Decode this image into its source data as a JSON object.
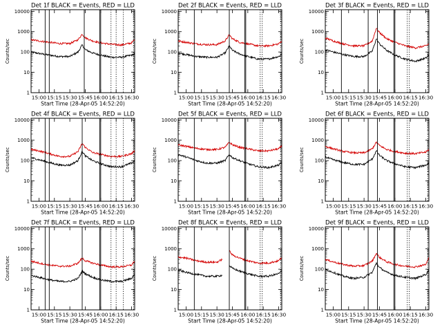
{
  "figure": {
    "background": "#ffffff"
  },
  "colors": {
    "events": "#000000",
    "lld": "#d40000"
  },
  "x_ticks": [
    "15:00",
    "15:15",
    "15:30",
    "15:45",
    "16:00",
    "16:15",
    "16:30"
  ],
  "y_ticks": [
    "1",
    "10",
    "100",
    "1000",
    "10000"
  ],
  "chart_data": [
    {
      "type": "line",
      "title": "Det 1f BLACK = Events, RED = LLD",
      "xlabel": "Start Time (28-Apr-05 14:52:20)",
      "ylabel": "Counts/sec",
      "yscale": "log",
      "ylim": [
        1,
        12000
      ],
      "xlim": [
        "14:52:20",
        "16:33:00"
      ],
      "series": [
        {
          "name": "Events",
          "color": "black",
          "x": [
            "14:52",
            "15:00",
            "15:10",
            "15:20",
            "15:30",
            "15:38",
            "15:42",
            "15:45",
            "15:52",
            "16:00",
            "16:10",
            "16:20",
            "16:30",
            "16:33"
          ],
          "values": [
            100,
            85,
            70,
            60,
            60,
            100,
            220,
            130,
            90,
            70,
            55,
            55,
            70,
            80
          ]
        },
        {
          "name": "LLD",
          "color": "red",
          "x": [
            "14:52",
            "15:00",
            "15:10",
            "15:20",
            "15:30",
            "15:38",
            "15:42",
            "15:45",
            "15:52",
            "16:00",
            "16:10",
            "16:20",
            "16:30",
            "16:33"
          ],
          "values": [
            400,
            350,
            300,
            260,
            260,
            400,
            750,
            500,
            350,
            280,
            240,
            220,
            280,
            400
          ]
        }
      ],
      "solid_markers": [
        "15:06",
        "15:10",
        "15:44",
        "15:59",
        "16:00"
      ],
      "dotted_markers": [
        "16:10",
        "16:15",
        "16:22",
        "16:32"
      ]
    },
    {
      "type": "line",
      "title": "Det 2f BLACK = Events, RED = LLD",
      "xlabel": "Start Time (28-Apr-05 14:52:20)",
      "ylabel": "Counts/sec",
      "yscale": "log",
      "ylim": [
        1,
        12000
      ],
      "xlim": [
        "14:52:20",
        "16:33:00"
      ],
      "series": [
        {
          "name": "Events",
          "color": "black",
          "x": [
            "14:52",
            "15:00",
            "15:10",
            "15:20",
            "15:30",
            "15:38",
            "15:42",
            "15:45",
            "15:52",
            "16:00",
            "16:10",
            "16:20",
            "16:30",
            "16:33"
          ],
          "values": [
            90,
            75,
            60,
            55,
            55,
            90,
            200,
            120,
            80,
            60,
            45,
            45,
            60,
            75
          ]
        },
        {
          "name": "LLD",
          "color": "red",
          "x": [
            "14:52",
            "15:00",
            "15:10",
            "15:20",
            "15:30",
            "15:38",
            "15:42",
            "15:45",
            "15:52",
            "16:00",
            "16:10",
            "16:20",
            "16:30",
            "16:33"
          ],
          "values": [
            350,
            300,
            250,
            230,
            230,
            350,
            700,
            450,
            300,
            250,
            200,
            200,
            250,
            350
          ]
        }
      ],
      "solid_markers": [
        "15:08",
        "15:42",
        "15:57",
        "15:58"
      ],
      "dotted_markers": [
        "16:12",
        "16:14",
        "16:32"
      ]
    },
    {
      "type": "line",
      "title": "Det 3f BLACK = Events, RED = LLD",
      "xlabel": "Start Time (28-Apr-05 14:52:20)",
      "ylabel": "Counts/sec",
      "yscale": "log",
      "ylim": [
        1,
        12000
      ],
      "xlim": [
        "14:52:20",
        "16:33:00"
      ],
      "series": [
        {
          "name": "Events",
          "color": "black",
          "x": [
            "14:52",
            "15:00",
            "15:10",
            "15:20",
            "15:30",
            "15:38",
            "15:42",
            "15:45",
            "15:52",
            "16:00",
            "16:10",
            "16:20",
            "16:30",
            "16:33"
          ],
          "values": [
            130,
            100,
            75,
            60,
            60,
            110,
            450,
            250,
            120,
            70,
            45,
            35,
            50,
            70
          ]
        },
        {
          "name": "LLD",
          "color": "red",
          "x": [
            "14:52",
            "15:00",
            "15:10",
            "15:20",
            "15:30",
            "15:38",
            "15:42",
            "15:45",
            "15:52",
            "16:00",
            "16:10",
            "16:20",
            "16:30",
            "16:33"
          ],
          "values": [
            500,
            350,
            250,
            200,
            200,
            350,
            1500,
            900,
            450,
            300,
            200,
            160,
            200,
            250
          ]
        }
      ],
      "solid_markers": [
        "15:08",
        "15:34",
        "15:43",
        "15:59",
        "16:00"
      ],
      "dotted_markers": [
        "16:12",
        "16:14",
        "16:32"
      ]
    },
    {
      "type": "line",
      "title": "Det 4f BLACK = Events, RED = LLD",
      "xlabel": "Start Time (28-Apr-05 14:52:20)",
      "ylabel": "Counts/sec",
      "yscale": "log",
      "ylim": [
        1,
        12000
      ],
      "xlim": [
        "14:52:20",
        "16:33:00"
      ],
      "series": [
        {
          "name": "Events",
          "color": "black",
          "x": [
            "14:52",
            "15:00",
            "15:10",
            "15:20",
            "15:30",
            "15:38",
            "15:42",
            "15:45",
            "15:52",
            "16:00",
            "16:10",
            "16:20",
            "16:30",
            "16:33"
          ],
          "values": [
            140,
            110,
            80,
            60,
            60,
            100,
            280,
            170,
            100,
            70,
            50,
            50,
            75,
            100
          ]
        },
        {
          "name": "LLD",
          "color": "red",
          "x": [
            "14:52",
            "15:00",
            "15:10",
            "15:20",
            "15:30",
            "15:38",
            "15:42",
            "15:45",
            "15:52",
            "16:00",
            "16:10",
            "16:20",
            "16:30",
            "16:33"
          ],
          "values": [
            350,
            300,
            220,
            160,
            160,
            280,
            700,
            450,
            250,
            200,
            160,
            160,
            220,
            300
          ]
        }
      ],
      "solid_markers": [
        "15:06",
        "15:10",
        "15:42",
        "15:59",
        "16:00"
      ],
      "dotted_markers": [
        "16:10",
        "16:15",
        "16:22",
        "16:32"
      ]
    },
    {
      "type": "line",
      "title": "Det 5f BLACK = Events, RED = LLD",
      "xlabel": "Start Time (28-Apr-05 14:52:20)",
      "ylabel": "Counts/sec",
      "yscale": "log",
      "ylim": [
        1,
        12000
      ],
      "xlim": [
        "14:52:20",
        "16:33:00"
      ],
      "series": [
        {
          "name": "Events",
          "color": "black",
          "x": [
            "14:52",
            "15:00",
            "15:10",
            "15:20",
            "15:30",
            "15:38",
            "15:42",
            "15:45",
            "15:52",
            "16:00",
            "16:10",
            "16:20",
            "16:30",
            "16:33"
          ],
          "values": [
            200,
            150,
            100,
            75,
            75,
            100,
            200,
            140,
            100,
            70,
            50,
            45,
            60,
            80
          ]
        },
        {
          "name": "LLD",
          "color": "red",
          "x": [
            "14:52",
            "15:00",
            "15:10",
            "15:20",
            "15:30",
            "15:38",
            "15:42",
            "15:45",
            "15:52",
            "16:00",
            "16:10",
            "16:20",
            "16:30",
            "16:33"
          ],
          "values": [
            600,
            500,
            400,
            350,
            350,
            450,
            800,
            600,
            450,
            380,
            300,
            300,
            380,
            500
          ]
        }
      ],
      "solid_markers": [
        "15:08",
        "15:42",
        "15:57",
        "15:58"
      ],
      "dotted_markers": [
        "16:12",
        "16:14",
        "16:32"
      ]
    },
    {
      "type": "line",
      "title": "Det 6f BLACK = Events, RED = LLD",
      "xlabel": "Start Time (28-Apr-05 14:52:20)",
      "ylabel": "Counts/sec",
      "yscale": "log",
      "ylim": [
        1,
        12000
      ],
      "xlim": [
        "14:52:20",
        "16:33:00"
      ],
      "series": [
        {
          "name": "Events",
          "color": "black",
          "x": [
            "14:52",
            "15:00",
            "15:10",
            "15:20",
            "15:30",
            "15:38",
            "15:42",
            "15:45",
            "15:52",
            "16:00",
            "16:10",
            "16:20",
            "16:30",
            "16:33"
          ],
          "values": [
            150,
            110,
            80,
            65,
            65,
            120,
            300,
            180,
            100,
            70,
            50,
            45,
            60,
            75
          ]
        },
        {
          "name": "LLD",
          "color": "red",
          "x": [
            "14:52",
            "15:00",
            "15:10",
            "15:20",
            "15:30",
            "15:38",
            "15:42",
            "15:45",
            "15:52",
            "16:00",
            "16:10",
            "16:20",
            "16:30",
            "16:33"
          ],
          "values": [
            500,
            380,
            280,
            240,
            240,
            380,
            800,
            550,
            350,
            280,
            230,
            220,
            260,
            350
          ]
        }
      ],
      "solid_markers": [
        "15:08",
        "15:34",
        "15:43",
        "15:59",
        "16:00"
      ],
      "dotted_markers": [
        "16:12",
        "16:14",
        "16:32"
      ]
    },
    {
      "type": "line",
      "title": "Det 7f BLACK = Events, RED = LLD",
      "xlabel": "Start Time (28-Apr-05 14:52:20)",
      "ylabel": "Counts/sec",
      "yscale": "log",
      "ylim": [
        1,
        12000
      ],
      "xlim": [
        "14:52:20",
        "16:33:00"
      ],
      "series": [
        {
          "name": "Events",
          "color": "black",
          "x": [
            "14:52",
            "15:00",
            "15:10",
            "15:20",
            "15:30",
            "15:38",
            "15:42",
            "15:45",
            "15:52",
            "16:00",
            "16:10",
            "16:20",
            "16:30",
            "16:33"
          ],
          "values": [
            50,
            40,
            30,
            25,
            25,
            35,
            80,
            60,
            40,
            30,
            25,
            25,
            35,
            60
          ]
        },
        {
          "name": "LLD",
          "color": "red",
          "x": [
            "14:52",
            "15:00",
            "15:10",
            "15:20",
            "15:30",
            "15:38",
            "15:42",
            "15:45",
            "15:52",
            "16:00",
            "16:10",
            "16:20",
            "16:30",
            "16:33"
          ],
          "values": [
            250,
            200,
            160,
            140,
            140,
            200,
            350,
            260,
            200,
            160,
            130,
            130,
            160,
            250
          ]
        }
      ],
      "solid_markers": [
        "15:06",
        "15:10",
        "15:42",
        "15:59",
        "16:00"
      ],
      "dotted_markers": [
        "16:10",
        "16:15",
        "16:22",
        "16:32"
      ]
    },
    {
      "type": "line",
      "title": "Det 8f BLACK = Events, RED = LLD",
      "xlabel": "Start Time (28-Apr-05 14:52:20)",
      "ylabel": "Counts/sec",
      "yscale": "log",
      "ylim": [
        1,
        12000
      ],
      "xlim": [
        "14:52:20",
        "16:33:00"
      ],
      "series": [
        {
          "name": "Events",
          "color": "black",
          "x": [
            "14:52",
            "15:00",
            "15:10",
            "15:20",
            "15:30",
            "15:35",
            "15:38",
            "15:42",
            "15:45",
            "15:52",
            "16:00",
            "16:10",
            "16:20",
            "16:30",
            "16:33"
          ],
          "values": [
            90,
            70,
            55,
            45,
            45,
            50,
            null,
            150,
            110,
            80,
            60,
            45,
            45,
            60,
            80
          ]
        },
        {
          "name": "LLD",
          "color": "red",
          "x": [
            "14:52",
            "15:00",
            "15:10",
            "15:20",
            "15:30",
            "15:35",
            "15:38",
            "15:42",
            "15:45",
            "15:52",
            "16:00",
            "16:10",
            "16:20",
            "16:30",
            "16:33"
          ],
          "values": [
            400,
            350,
            260,
            220,
            220,
            300,
            null,
            800,
            500,
            350,
            260,
            200,
            200,
            260,
            380
          ]
        }
      ],
      "solid_markers": [
        "15:08",
        "15:42",
        "15:57",
        "15:58"
      ],
      "dotted_markers": [
        "16:12",
        "16:14",
        "16:32"
      ]
    },
    {
      "type": "line",
      "title": "Det 9f BLACK = Events, RED = LLD",
      "xlabel": "Start Time (28-Apr-05 14:52:20)",
      "ylabel": "Counts/sec",
      "yscale": "log",
      "ylim": [
        1,
        12000
      ],
      "xlim": [
        "14:52:20",
        "16:33:00"
      ],
      "series": [
        {
          "name": "Events",
          "color": "black",
          "x": [
            "14:52",
            "15:00",
            "15:10",
            "15:20",
            "15:30",
            "15:38",
            "15:42",
            "15:45",
            "15:52",
            "16:00",
            "16:10",
            "16:20",
            "16:30",
            "16:33"
          ],
          "values": [
            100,
            70,
            45,
            35,
            40,
            70,
            200,
            120,
            70,
            50,
            40,
            35,
            55,
            90
          ]
        },
        {
          "name": "LLD",
          "color": "red",
          "x": [
            "14:52",
            "15:00",
            "15:10",
            "15:20",
            "15:30",
            "15:38",
            "15:42",
            "15:45",
            "15:52",
            "16:00",
            "16:10",
            "16:20",
            "16:30",
            "16:33"
          ],
          "values": [
            300,
            230,
            170,
            140,
            150,
            250,
            600,
            380,
            230,
            170,
            140,
            130,
            170,
            350
          ]
        }
      ],
      "solid_markers": [
        "15:08",
        "15:34",
        "15:43",
        "15:59",
        "16:00"
      ],
      "dotted_markers": [
        "16:12",
        "16:14",
        "16:32"
      ]
    }
  ]
}
